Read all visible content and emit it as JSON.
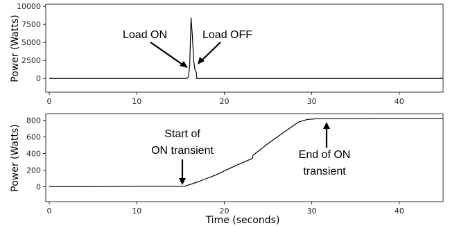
{
  "chart_data": [
    {
      "type": "line",
      "ylabel": "Power (Watts)",
      "xlabel": "",
      "xlim": [
        -0.4,
        45
      ],
      "ylim": [
        -1900,
        10300
      ],
      "x_ticks": [
        0,
        10,
        20,
        30,
        40
      ],
      "x_tick_labels": [
        "0",
        "10",
        "20",
        "30",
        "40"
      ],
      "y_ticks": [
        0,
        2500,
        5000,
        7500,
        10000
      ],
      "y_tick_labels": [
        "0",
        "2500",
        "5000",
        "7500",
        "10000"
      ],
      "grid": false,
      "series": [
        {
          "x": [
            0,
            15.7,
            15.9,
            16.05,
            16.2,
            16.35,
            16.5,
            16.65,
            16.8,
            16.85,
            17.0,
            20,
            30,
            45
          ],
          "y": [
            0,
            0,
            200,
            1800,
            8400,
            6000,
            2500,
            1200,
            900,
            0,
            0,
            0,
            0,
            0
          ]
        }
      ],
      "annotations": [
        {
          "text": "Load ON",
          "x": 16.0,
          "y": 0
        },
        {
          "text": "Load OFF",
          "x": 16.9,
          "y": 700
        }
      ]
    },
    {
      "type": "line",
      "xlabel": "Time (seconds)",
      "ylabel": "Power (Watts)",
      "xlim": [
        -0.4,
        45
      ],
      "ylim": [
        -180,
        880
      ],
      "x_ticks": [
        0,
        10,
        20,
        30,
        40
      ],
      "x_tick_labels": [
        "0",
        "10",
        "20",
        "30",
        "40"
      ],
      "y_ticks": [
        0,
        200,
        400,
        600,
        800
      ],
      "y_tick_labels": [
        "0",
        "200",
        "400",
        "600",
        "800"
      ],
      "grid": false,
      "series": [
        {
          "x": [
            0,
            5,
            10,
            15.5,
            17,
            19,
            21,
            23.2,
            23.3,
            25,
            27,
            28.5,
            29.5,
            30.5,
            31.5,
            35,
            40,
            45
          ],
          "y": [
            0,
            0,
            5,
            5,
            60,
            140,
            240,
            340,
            380,
            520,
            670,
            780,
            810,
            818,
            820,
            820,
            822,
            822
          ]
        }
      ],
      "annotations": [
        {
          "text": "Start of",
          "x": 15.3,
          "y": 0
        },
        {
          "text": "ON transient",
          "x": 15.3,
          "y": 0
        },
        {
          "text": "End of ON",
          "x": 31.5,
          "y": 820
        },
        {
          "text": "transient",
          "x": 31.5,
          "y": 820
        }
      ]
    }
  ]
}
